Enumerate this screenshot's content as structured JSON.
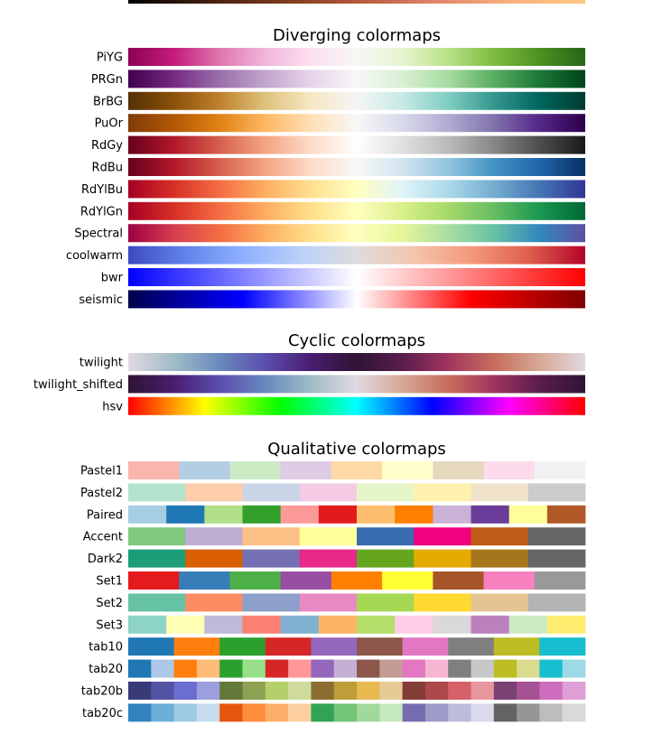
{
  "chart_data": {
    "type": "colormap_reference",
    "top_strip": {
      "stops": [
        "#000000",
        "#3f1d0e",
        "#7c3a1d",
        "#b4583a",
        "#e0826a",
        "#f7b07e",
        "#ffc77f"
      ]
    },
    "sections": [
      {
        "title": "Diverging colormaps",
        "kind": "continuous",
        "colormaps": [
          {
            "name": "PiYG",
            "stops": [
              "#8e0152",
              "#c51b7d",
              "#de77ae",
              "#f1b6da",
              "#fde0ef",
              "#f7f7f7",
              "#e6f5d0",
              "#b8e186",
              "#7fbc41",
              "#4d9221",
              "#276419"
            ]
          },
          {
            "name": "PRGn",
            "stops": [
              "#40004b",
              "#762a83",
              "#9970ab",
              "#c2a5cf",
              "#e7d4e8",
              "#f7f7f7",
              "#d9f0d3",
              "#a6dba0",
              "#5aae61",
              "#1b7837",
              "#00441b"
            ]
          },
          {
            "name": "BrBG",
            "stops": [
              "#543005",
              "#8c510a",
              "#bf812d",
              "#dfc27d",
              "#f6e8c3",
              "#f5f5f5",
              "#c7eae5",
              "#80cdc1",
              "#35978f",
              "#01665e",
              "#003c30"
            ]
          },
          {
            "name": "PuOr",
            "stops": [
              "#7f3b08",
              "#b35806",
              "#e08214",
              "#fdb863",
              "#fee0b6",
              "#f7f7f7",
              "#d8daeb",
              "#b2abd2",
              "#8073ac",
              "#542788",
              "#2d004b"
            ]
          },
          {
            "name": "RdGy",
            "stops": [
              "#67001f",
              "#b2182b",
              "#d6604d",
              "#f4a582",
              "#fddbc7",
              "#ffffff",
              "#e0e0e0",
              "#bababa",
              "#878787",
              "#4d4d4d",
              "#1a1a1a"
            ]
          },
          {
            "name": "RdBu",
            "stops": [
              "#67001f",
              "#b2182b",
              "#d6604d",
              "#f4a582",
              "#fddbc7",
              "#f7f7f7",
              "#d1e5f0",
              "#92c5de",
              "#4393c3",
              "#2166ac",
              "#053061"
            ]
          },
          {
            "name": "RdYlBu",
            "stops": [
              "#a50026",
              "#d73027",
              "#f46d43",
              "#fdae61",
              "#fee090",
              "#ffffbf",
              "#e0f3f8",
              "#abd9e9",
              "#74add1",
              "#4575b4",
              "#313695"
            ]
          },
          {
            "name": "RdYlGn",
            "stops": [
              "#a50026",
              "#d73027",
              "#f46d43",
              "#fdae61",
              "#fee08b",
              "#ffffbf",
              "#d9ef8b",
              "#a6d96a",
              "#66bd63",
              "#1a9850",
              "#006837"
            ]
          },
          {
            "name": "Spectral",
            "stops": [
              "#9e0142",
              "#d53e4f",
              "#f46d43",
              "#fdae61",
              "#fee08b",
              "#ffffbf",
              "#e6f598",
              "#abdda4",
              "#66c2a5",
              "#3288bd",
              "#5e4fa2"
            ]
          },
          {
            "name": "coolwarm",
            "stops": [
              "#3b4cc0",
              "#6282ea",
              "#8db0fe",
              "#b8d0f9",
              "#dddddd",
              "#f5c4ac",
              "#f49a7b",
              "#de604d",
              "#b40426"
            ]
          },
          {
            "name": "bwr",
            "stops": [
              "#0000ff",
              "#ffffff",
              "#ff0000"
            ]
          },
          {
            "name": "seismic",
            "stops": [
              "#00004c",
              "#0000ff",
              "#ffffff",
              "#ff0000",
              "#7f0000"
            ]
          }
        ]
      },
      {
        "title": "Cyclic colormaps",
        "kind": "continuous",
        "colormaps": [
          {
            "name": "twilight",
            "stops": [
              "#e2d9e2",
              "#9fbcc6",
              "#6889be",
              "#5c4eae",
              "#481d6f",
              "#2f1436",
              "#5a1d4c",
              "#a1345e",
              "#c76d5d",
              "#d6a895",
              "#e2d9e2"
            ]
          },
          {
            "name": "twilight_shifted",
            "stops": [
              "#2f1436",
              "#481d6f",
              "#5c4eae",
              "#6889be",
              "#9fbcc6",
              "#e2d9e2",
              "#d6a895",
              "#c76d5d",
              "#a1345e",
              "#5a1d4c",
              "#2f1436"
            ]
          },
          {
            "name": "hsv",
            "stops": [
              "#ff0000",
              "#ffff00",
              "#00ff00",
              "#00ffff",
              "#0000ff",
              "#ff00ff",
              "#ff0000"
            ]
          }
        ]
      },
      {
        "title": "Qualitative colormaps",
        "kind": "discrete",
        "colormaps": [
          {
            "name": "Pastel1",
            "colors": [
              "#fbb4ae",
              "#b3cde3",
              "#ccebc5",
              "#decbe4",
              "#fed9a6",
              "#ffffcc",
              "#e5d8bd",
              "#fddaec",
              "#f2f2f2"
            ]
          },
          {
            "name": "Pastel2",
            "colors": [
              "#b3e2cd",
              "#fdcdac",
              "#cbd5e8",
              "#f4cae4",
              "#e6f5c9",
              "#fff2ae",
              "#f1e2cc",
              "#cccccc"
            ]
          },
          {
            "name": "Paired",
            "colors": [
              "#a6cee3",
              "#1f78b4",
              "#b2df8a",
              "#33a02c",
              "#fb9a99",
              "#e31a1c",
              "#fdbf6f",
              "#ff7f00",
              "#cab2d6",
              "#6a3d9a",
              "#ffff99",
              "#b15928"
            ]
          },
          {
            "name": "Accent",
            "colors": [
              "#7fc97f",
              "#beaed4",
              "#fdc086",
              "#ffff99",
              "#386cb0",
              "#f0027f",
              "#bf5b17",
              "#666666"
            ]
          },
          {
            "name": "Dark2",
            "colors": [
              "#1b9e77",
              "#d95f02",
              "#7570b3",
              "#e7298a",
              "#66a61e",
              "#e6ab02",
              "#a6761d",
              "#666666"
            ]
          },
          {
            "name": "Set1",
            "colors": [
              "#e41a1c",
              "#377eb8",
              "#4daf4a",
              "#984ea3",
              "#ff7f00",
              "#ffff33",
              "#a65628",
              "#f781bf",
              "#999999"
            ]
          },
          {
            "name": "Set2",
            "colors": [
              "#66c2a5",
              "#fc8d62",
              "#8da0cb",
              "#e78ac3",
              "#a6d854",
              "#ffd92f",
              "#e5c494",
              "#b3b3b3"
            ]
          },
          {
            "name": "Set3",
            "colors": [
              "#8dd3c7",
              "#ffffb3",
              "#bebada",
              "#fb8072",
              "#80b1d3",
              "#fdb462",
              "#b3de69",
              "#fccde5",
              "#d9d9d9",
              "#bc80bd",
              "#ccebc5",
              "#ffed6f"
            ]
          },
          {
            "name": "tab10",
            "colors": [
              "#1f77b4",
              "#ff7f0e",
              "#2ca02c",
              "#d62728",
              "#9467bd",
              "#8c564b",
              "#e377c2",
              "#7f7f7f",
              "#bcbd22",
              "#17becf"
            ]
          },
          {
            "name": "tab20",
            "colors": [
              "#1f77b4",
              "#aec7e8",
              "#ff7f0e",
              "#ffbb78",
              "#2ca02c",
              "#98df8a",
              "#d62728",
              "#ff9896",
              "#9467bd",
              "#c5b0d5",
              "#8c564b",
              "#c49c94",
              "#e377c2",
              "#f7b6d2",
              "#7f7f7f",
              "#c7c7c7",
              "#bcbd22",
              "#dbdb8d",
              "#17becf",
              "#9edae5"
            ]
          },
          {
            "name": "tab20b",
            "colors": [
              "#393b79",
              "#5254a3",
              "#6b6ecf",
              "#9c9ede",
              "#637939",
              "#8ca252",
              "#b5cf6b",
              "#cedb9c",
              "#8c6d31",
              "#bd9e39",
              "#e7ba52",
              "#e7cb94",
              "#843c39",
              "#ad494a",
              "#d6616b",
              "#e7969c",
              "#7b4173",
              "#a55194",
              "#ce6dbd",
              "#de9ed6"
            ]
          },
          {
            "name": "tab20c",
            "colors": [
              "#3182bd",
              "#6baed6",
              "#9ecae1",
              "#c6dbef",
              "#e6550d",
              "#fd8d3c",
              "#fdae6b",
              "#fdd0a2",
              "#31a354",
              "#74c476",
              "#a1d99b",
              "#c7e9c0",
              "#756bb1",
              "#9e9ac8",
              "#bcbddc",
              "#dadaeb",
              "#636363",
              "#969696",
              "#bdbdbd",
              "#d9d9d9"
            ]
          }
        ]
      }
    ]
  }
}
